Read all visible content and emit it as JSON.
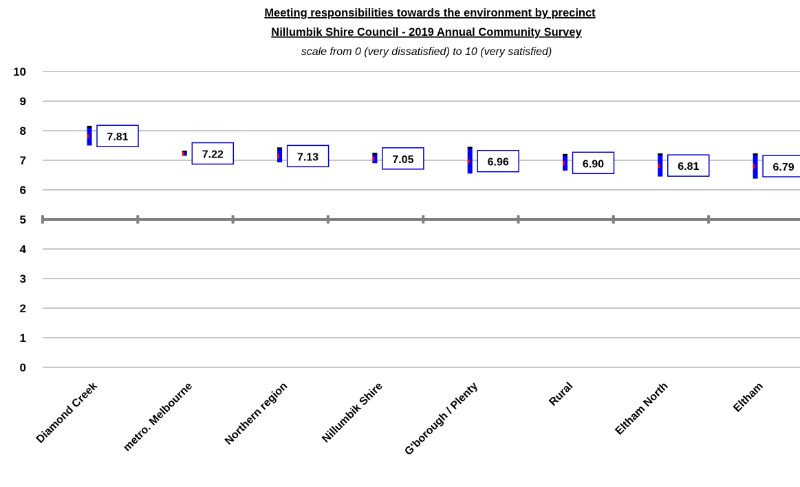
{
  "chart_data": {
    "type": "scatter",
    "title": "Meeting responsibilities towards the environment by precinct",
    "title2": "Nillumbik Shire Council - 2019 Annual Community Survey",
    "subtitle": "scale from 0 (very dissatisfied) to 10 (very satisfied)",
    "ylim": [
      0,
      10
    ],
    "yticks": [
      "0",
      "1",
      "2",
      "3",
      "4",
      "5",
      "6",
      "7",
      "8",
      "9",
      "10"
    ],
    "grid": true,
    "reference_line": 5,
    "categories": [
      "Diamond Creek",
      "metro. Melbourne",
      "Northern region",
      "Nillumbik Shire",
      "G'borough / Plenty",
      "Rural",
      "Eltham North",
      "Eltham"
    ],
    "values": [
      7.81,
      7.22,
      7.13,
      7.05,
      6.96,
      6.9,
      6.81,
      6.79
    ],
    "labels": [
      "7.81",
      "7.22",
      "7.13",
      "7.05",
      "6.96",
      "6.90",
      "6.81",
      "6.79"
    ],
    "ci_lower": [
      7.5,
      7.15,
      6.93,
      6.9,
      6.55,
      6.65,
      6.45,
      6.38
    ],
    "ci_upper": [
      8.13,
      7.29,
      7.4,
      7.22,
      7.42,
      7.18,
      7.2,
      7.2
    ],
    "colors": {
      "interval": "#0000ff",
      "cap": "#000000",
      "marker": "#ff0000",
      "label_border": "#0000cc",
      "grid": "#a6a6a6",
      "reference": "#808080"
    }
  }
}
